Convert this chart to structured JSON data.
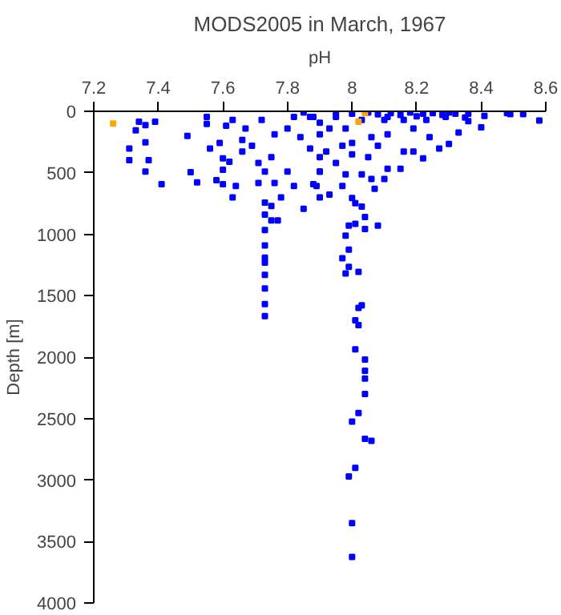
{
  "chart_data": {
    "type": "scatter",
    "title": "MODS2005 in March, 1967",
    "xlabel": "pH",
    "ylabel": "Depth [m]",
    "xlim": [
      7.2,
      8.6
    ],
    "xticks": [
      7.2,
      7.4,
      7.6,
      7.8,
      8,
      8.2,
      8.4,
      8.6
    ],
    "ylim": [
      4000,
      0
    ],
    "yticks": [
      0,
      500,
      1000,
      1500,
      2000,
      2500,
      3000,
      3500,
      4000
    ],
    "grid": false,
    "marker": "square",
    "series": [
      {
        "color": "#0000ff",
        "x": [
          7.73,
          7.73,
          7.73,
          7.73,
          7.73,
          7.73,
          7.73,
          7.73,
          7.73,
          7.73,
          8.0,
          8.01,
          8.03,
          8.04,
          8.01,
          8.08,
          8.04,
          7.99,
          7.98,
          7.99,
          7.97,
          7.99,
          7.98,
          8.02,
          8.03,
          8.02,
          8.01,
          8.02,
          8.01,
          8.04,
          8.04,
          8.04,
          8.04,
          8.02,
          8.0,
          8.04,
          8.06,
          8.01,
          7.99,
          8.0,
          8.0,
          7.34,
          7.36,
          7.39,
          7.33,
          7.36,
          7.31,
          7.31,
          7.37,
          7.36,
          7.41,
          7.49,
          7.5,
          7.52,
          7.55,
          7.55,
          7.56,
          7.59,
          7.58,
          7.6,
          7.6,
          7.6,
          7.63,
          7.62,
          7.64,
          7.61,
          7.63,
          7.66,
          7.66,
          7.69,
          7.71,
          7.71,
          7.73,
          7.75,
          7.76,
          7.78,
          7.8,
          7.82,
          7.85,
          7.75,
          7.75,
          7.77,
          7.67,
          7.72,
          7.76,
          7.8,
          7.84,
          7.87,
          7.9,
          7.89,
          7.9,
          7.82,
          7.87,
          7.9,
          7.88,
          7.9,
          7.92,
          7.9,
          7.88,
          7.9,
          7.93,
          7.97,
          7.98,
          8.0,
          8.0,
          8.03,
          8.06,
          8.1,
          8.11,
          8.07,
          8.05,
          8.08,
          8.11,
          8.15,
          8.16,
          8.19,
          8.22,
          8.27,
          8.3,
          8.33,
          8.36,
          8.4,
          8.41,
          8.48,
          8.49,
          8.53,
          8.58,
          7.95,
          8.03,
          8.1,
          8.16,
          8.23,
          8.29,
          8.11,
          8.19,
          8.24,
          8.06,
          7.98,
          7.93,
          7.97,
          7.95,
          8.36,
          7.85,
          7.95,
          8.0,
          8.05,
          8.08,
          8.12,
          8.15,
          8.18,
          8.2,
          8.22,
          8.25,
          8.28,
          8.3,
          8.32,
          8.35
        ],
        "values": [
          742,
          840,
          966,
          1092,
          1190,
          1232,
          1330,
          1442,
          1568,
          1666,
          705,
          747,
          775,
          860,
          915,
          930,
          957,
          930,
          1012,
          1125,
          1195,
          1265,
          1320,
          1306,
          1578,
          1600,
          1700,
          1740,
          1936,
          2020,
          2110,
          2175,
          2300,
          2455,
          2525,
          2665,
          2680,
          2900,
          2970,
          3350,
          3626,
          84,
          112,
          84,
          154,
          252,
          303,
          397,
          397,
          490,
          593,
          200,
          495,
          578,
          46,
          102,
          303,
          257,
          560,
          383,
          476,
          593,
          700,
          410,
          607,
          117,
          70,
          233,
          327,
          280,
          420,
          583,
          490,
          373,
          583,
          700,
          490,
          607,
          793,
          770,
          887,
          887,
          140,
          70,
          187,
          140,
          210,
          303,
          490,
          607,
          373,
          46,
          46,
          93,
          46,
          187,
          327,
          490,
          593,
          700,
          677,
          607,
          513,
          350,
          257,
          513,
          550,
          550,
          467,
          630,
          373,
          280,
          187,
          467,
          327,
          327,
          383,
          303,
          266,
          173,
          80,
          131,
          37,
          15,
          23,
          23,
          75,
          46,
          70,
          70,
          70,
          70,
          46,
          46,
          140,
          210,
          210,
          140,
          140,
          280,
          420,
          20,
          10,
          10,
          20,
          10,
          25,
          15,
          30,
          10,
          40,
          20,
          15,
          30,
          10,
          20,
          50
        ]
      },
      {
        "color": "#ffa500",
        "x": [
          7.26,
          8.04,
          8.02
        ],
        "values": [
          100,
          15,
          85
        ]
      }
    ]
  }
}
